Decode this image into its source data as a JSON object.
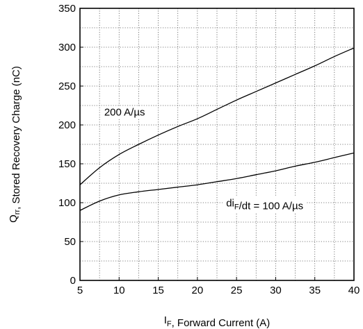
{
  "chart_data": {
    "type": "line",
    "xlabel": "I<sub>F</sub>, Forward Current (A)",
    "ylabel": "Q<sub>rr</sub>, Stored Recovery Charge (nC)",
    "xlim": [
      5,
      40
    ],
    "ylim": [
      0,
      350
    ],
    "xticks": [
      5,
      10,
      15,
      20,
      25,
      30,
      35,
      40
    ],
    "yticks": [
      0,
      50,
      100,
      150,
      200,
      250,
      300,
      350
    ],
    "x_tick_labels": [
      "5",
      "10",
      "15",
      "20",
      "25",
      "30",
      "35",
      "40"
    ],
    "y_tick_labels": [
      "0",
      "50",
      "100",
      "150",
      "200",
      "250",
      "300",
      "350"
    ],
    "grid": true,
    "series": [
      {
        "name": "200 A/µs",
        "x": [
          5,
          7.5,
          10,
          12.5,
          15,
          17.5,
          20,
          22.5,
          25,
          27.5,
          30,
          32.5,
          35,
          37.5,
          40
        ],
        "y": [
          123,
          145,
          162,
          175,
          187,
          198,
          208,
          220,
          232,
          243,
          254,
          265,
          276,
          288,
          299
        ]
      },
      {
        "name": "di<sub>F</sub>/dt = 100 A/µs",
        "x": [
          5,
          7.5,
          10,
          12.5,
          15,
          17.5,
          20,
          22.5,
          25,
          27.5,
          30,
          32.5,
          35,
          37.5,
          40
        ],
        "y": [
          90,
          102,
          110,
          114,
          117,
          120,
          123,
          127,
          131,
          136,
          141,
          147,
          152,
          158,
          164
        ]
      }
    ],
    "annotations": [
      {
        "text": "200 A/µs"
      },
      {
        "text": "di<sub>F</sub>/dt = 100 A/µs"
      }
    ]
  }
}
